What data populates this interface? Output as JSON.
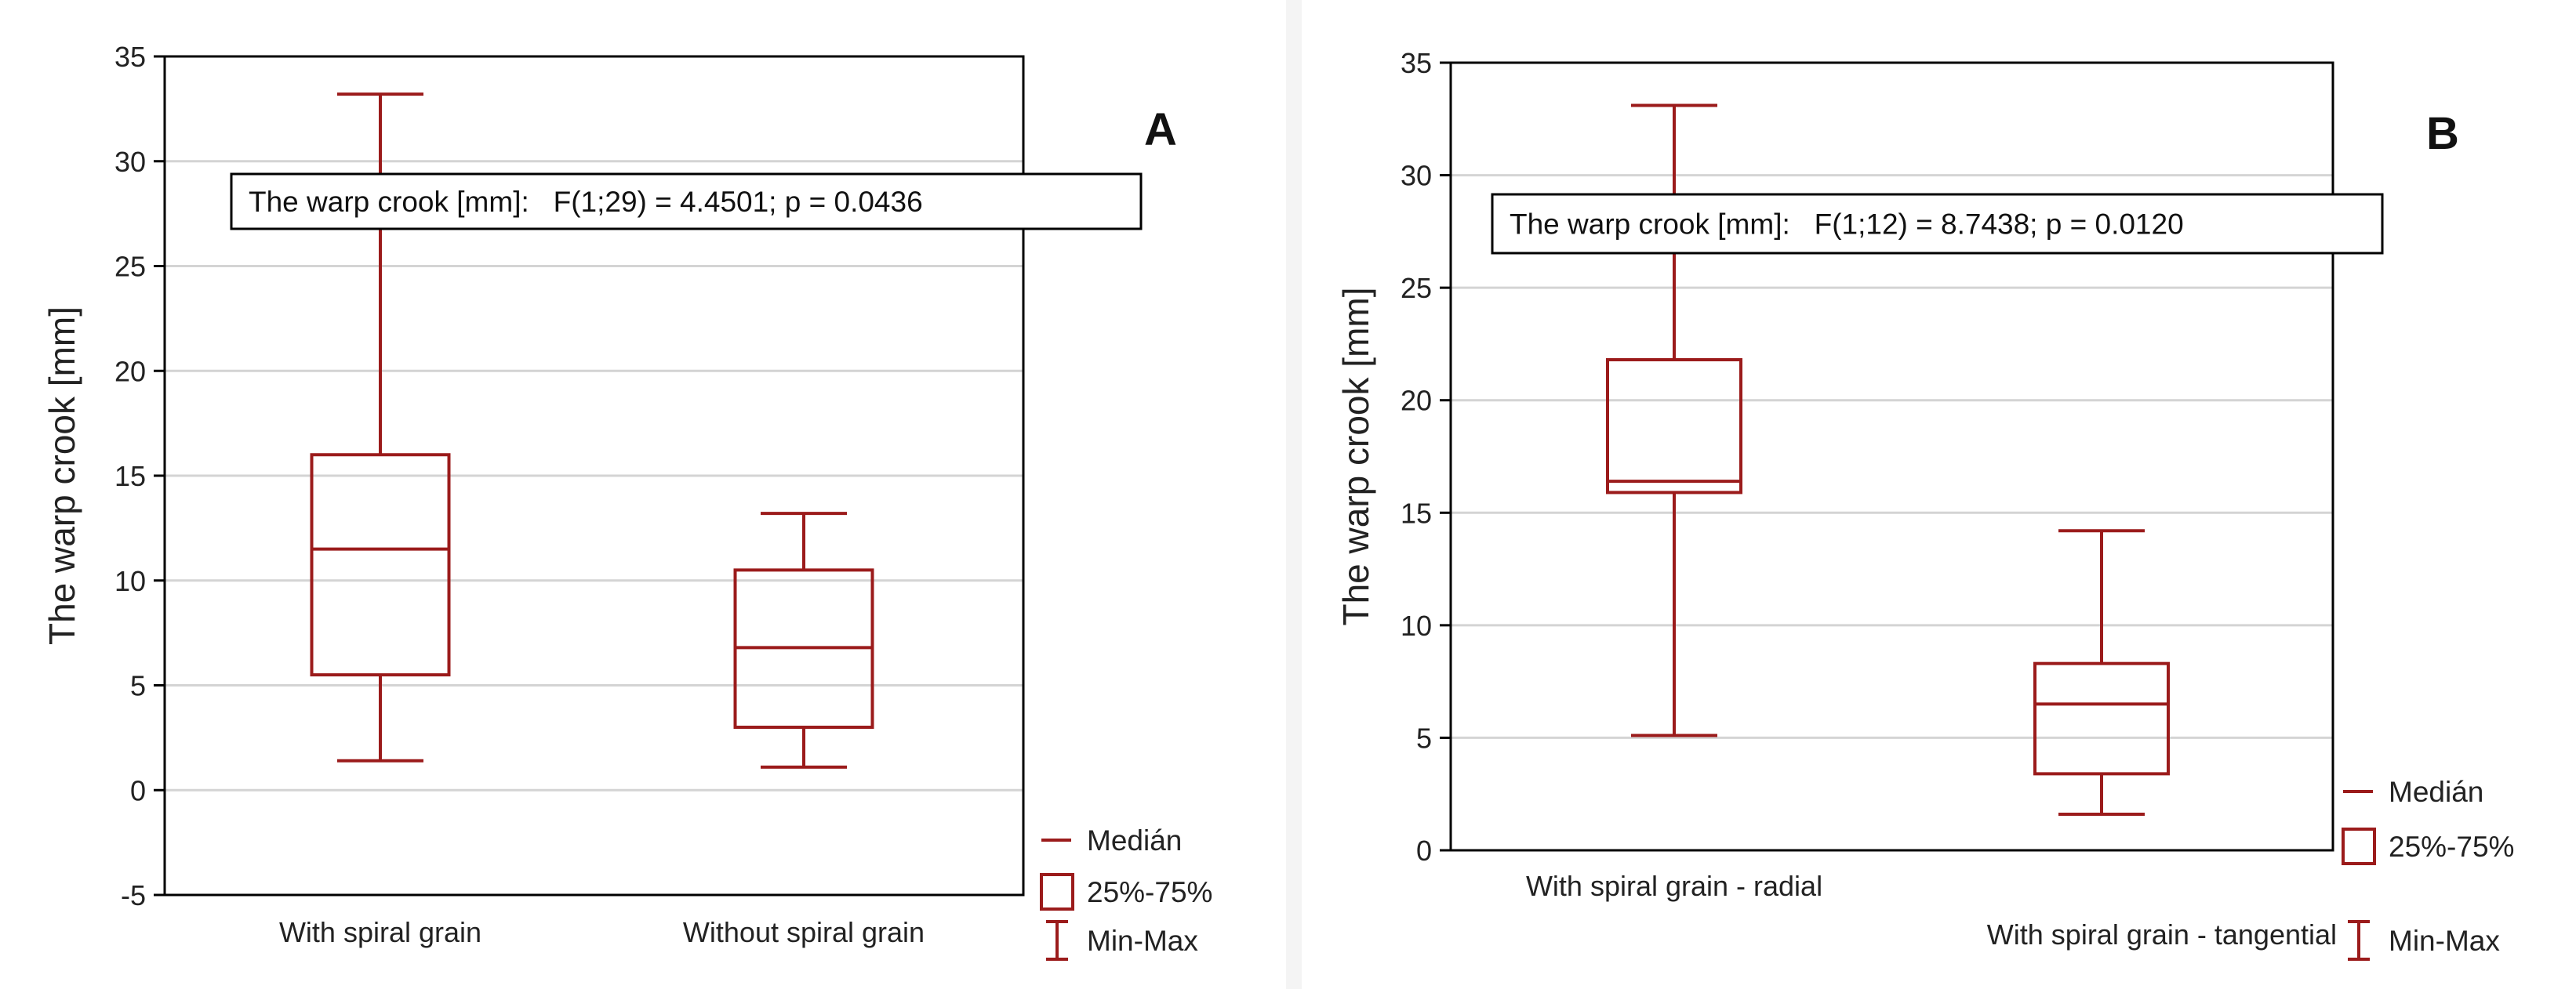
{
  "colors": {
    "box": "#9b1b1b",
    "grid": "#d4d4d4",
    "axis": "#000000",
    "background": "#ffffff"
  },
  "legend": {
    "median": "Medián",
    "quartiles": "25%-75%",
    "minmax": "Min-Max"
  },
  "chart_data": [
    {
      "type": "box",
      "panel": "A",
      "ylabel": "The warp crook [mm]",
      "annotation": "The warp crook [mm]:   F(1;29) = 4.4501; p = 0.0436",
      "ylim": [
        -5,
        35
      ],
      "yticks": [
        -5,
        0,
        5,
        10,
        15,
        20,
        25,
        30,
        35
      ],
      "grid": true,
      "legend_position": "outside-bottom-right",
      "categories": [
        "With spiral grain",
        "Without spiral grain"
      ],
      "boxes": [
        {
          "name": "With spiral grain",
          "min": 1.4,
          "q1": 5.5,
          "median": 11.5,
          "q3": 16.0,
          "max": 33.2
        },
        {
          "name": "Without spiral grain",
          "min": 1.1,
          "q1": 3.0,
          "median": 6.8,
          "q3": 10.5,
          "max": 13.2
        }
      ]
    },
    {
      "type": "box",
      "panel": "B",
      "ylabel": "The warp crook [mm]",
      "annotation": "The warp crook [mm]:   F(1;12) = 8.7438; p = 0.0120",
      "ylim": [
        0,
        35
      ],
      "yticks": [
        0,
        5,
        10,
        15,
        20,
        25,
        30,
        35
      ],
      "grid": true,
      "legend_position": "outside-bottom-right",
      "categories": [
        "With spiral grain - radial",
        "With spiral grain - tangential"
      ],
      "boxes": [
        {
          "name": "With spiral grain - radial",
          "min": 5.1,
          "q1": 15.9,
          "median": 16.4,
          "q3": 21.8,
          "max": 33.1
        },
        {
          "name": "With spiral grain - tangential",
          "min": 1.6,
          "q1": 3.4,
          "median": 6.5,
          "q3": 8.3,
          "max": 14.2
        }
      ]
    }
  ]
}
